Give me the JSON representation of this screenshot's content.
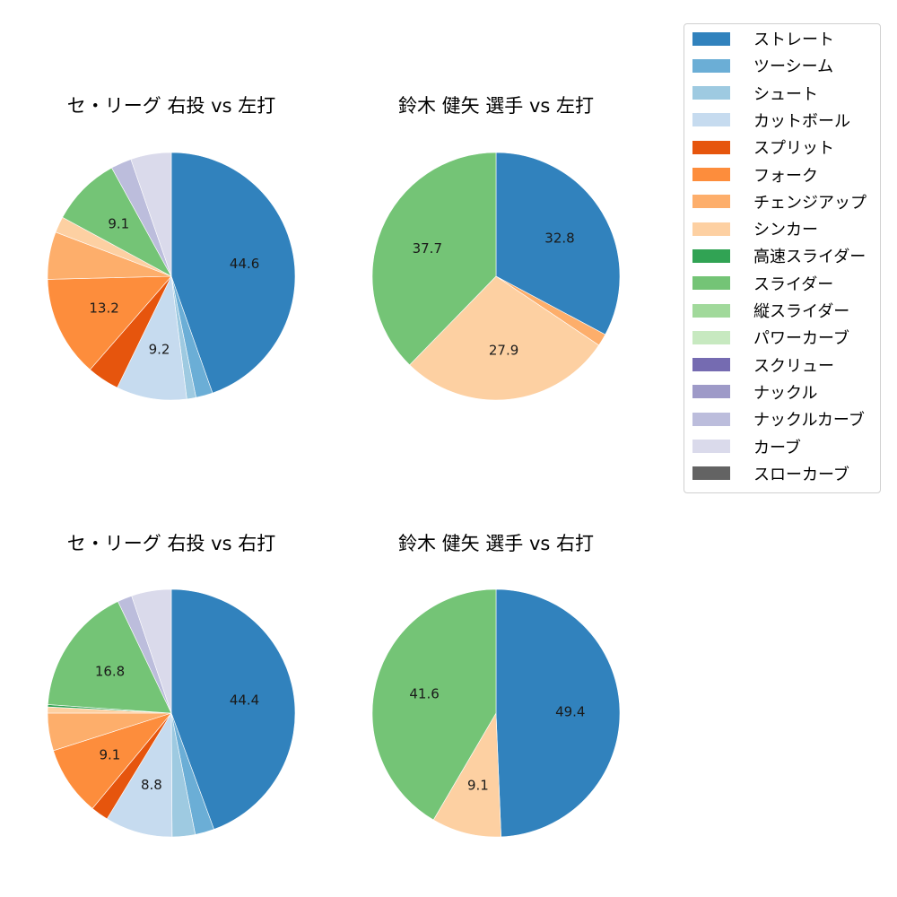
{
  "legend": {
    "items": [
      {
        "label": "ストレート",
        "color": "#3182bd"
      },
      {
        "label": "ツーシーム",
        "color": "#6baed6"
      },
      {
        "label": "シュート",
        "color": "#9ecae1"
      },
      {
        "label": "カットボール",
        "color": "#c6dbef"
      },
      {
        "label": "スプリット",
        "color": "#e6550d"
      },
      {
        "label": "フォーク",
        "color": "#fd8d3c"
      },
      {
        "label": "チェンジアップ",
        "color": "#fdae6b"
      },
      {
        "label": "シンカー",
        "color": "#fdd0a2"
      },
      {
        "label": "高速スライダー",
        "color": "#31a354"
      },
      {
        "label": "スライダー",
        "color": "#74c476"
      },
      {
        "label": "縦スライダー",
        "color": "#a1d99b"
      },
      {
        "label": "パワーカーブ",
        "color": "#c7e9c0"
      },
      {
        "label": "スクリュー",
        "color": "#756bb1"
      },
      {
        "label": "ナックル",
        "color": "#9e9ac8"
      },
      {
        "label": "ナックルカーブ",
        "color": "#bcbddc"
      },
      {
        "label": "カーブ",
        "color": "#dadaeb"
      },
      {
        "label": "スローカーブ",
        "color": "#636363"
      }
    ]
  },
  "chart_data": [
    {
      "type": "pie",
      "title": "セ・リーグ 右投 vs 左打",
      "position": "top-left",
      "startangle": 90,
      "direction": "clockwise",
      "slices": [
        {
          "label": "ストレート",
          "value": 44.6,
          "shown": "44.6"
        },
        {
          "label": "ツーシーム",
          "value": 2.2,
          "shown": ""
        },
        {
          "label": "シュート",
          "value": 1.2,
          "shown": ""
        },
        {
          "label": "カットボール",
          "value": 9.2,
          "shown": "9.2"
        },
        {
          "label": "スプリット",
          "value": 4.2,
          "shown": ""
        },
        {
          "label": "フォーク",
          "value": 13.2,
          "shown": "13.2"
        },
        {
          "label": "チェンジアップ",
          "value": 6.2,
          "shown": ""
        },
        {
          "label": "シンカー",
          "value": 2.1,
          "shown": ""
        },
        {
          "label": "スライダー",
          "value": 9.1,
          "shown": "9.1"
        },
        {
          "label": "ナックルカーブ",
          "value": 2.7,
          "shown": ""
        },
        {
          "label": "カーブ",
          "value": 5.3,
          "shown": ""
        }
      ]
    },
    {
      "type": "pie",
      "title": "鈴木 健矢 選手 vs 左打",
      "position": "top-right",
      "startangle": 90,
      "direction": "clockwise",
      "slices": [
        {
          "label": "ストレート",
          "value": 32.8,
          "shown": "32.8"
        },
        {
          "label": "チェンジアップ",
          "value": 1.6,
          "shown": ""
        },
        {
          "label": "シンカー",
          "value": 27.9,
          "shown": "27.9"
        },
        {
          "label": "スライダー",
          "value": 37.7,
          "shown": "37.7"
        }
      ]
    },
    {
      "type": "pie",
      "title": "セ・リーグ 右投 vs 右打",
      "position": "bottom-left",
      "startangle": 90,
      "direction": "clockwise",
      "slices": [
        {
          "label": "ストレート",
          "value": 44.4,
          "shown": "44.4"
        },
        {
          "label": "ツーシーム",
          "value": 2.5,
          "shown": ""
        },
        {
          "label": "シュート",
          "value": 3.0,
          "shown": ""
        },
        {
          "label": "カットボール",
          "value": 8.8,
          "shown": "8.8"
        },
        {
          "label": "スプリット",
          "value": 2.3,
          "shown": ""
        },
        {
          "label": "フォーク",
          "value": 9.1,
          "shown": "9.1"
        },
        {
          "label": "チェンジアップ",
          "value": 4.9,
          "shown": ""
        },
        {
          "label": "シンカー",
          "value": 0.8,
          "shown": ""
        },
        {
          "label": "高速スライダー",
          "value": 0.3,
          "shown": ""
        },
        {
          "label": "スライダー",
          "value": 16.8,
          "shown": "16.8"
        },
        {
          "label": "ナックルカーブ",
          "value": 1.9,
          "shown": ""
        },
        {
          "label": "カーブ",
          "value": 5.2,
          "shown": ""
        }
      ]
    },
    {
      "type": "pie",
      "title": "鈴木 健矢 選手 vs 右打",
      "position": "bottom-right",
      "startangle": 90,
      "direction": "clockwise",
      "slices": [
        {
          "label": "ストレート",
          "value": 49.4,
          "shown": "49.4"
        },
        {
          "label": "シンカー",
          "value": 9.1,
          "shown": "9.1"
        },
        {
          "label": "スライダー",
          "value": 41.6,
          "shown": "41.6"
        }
      ]
    }
  ]
}
